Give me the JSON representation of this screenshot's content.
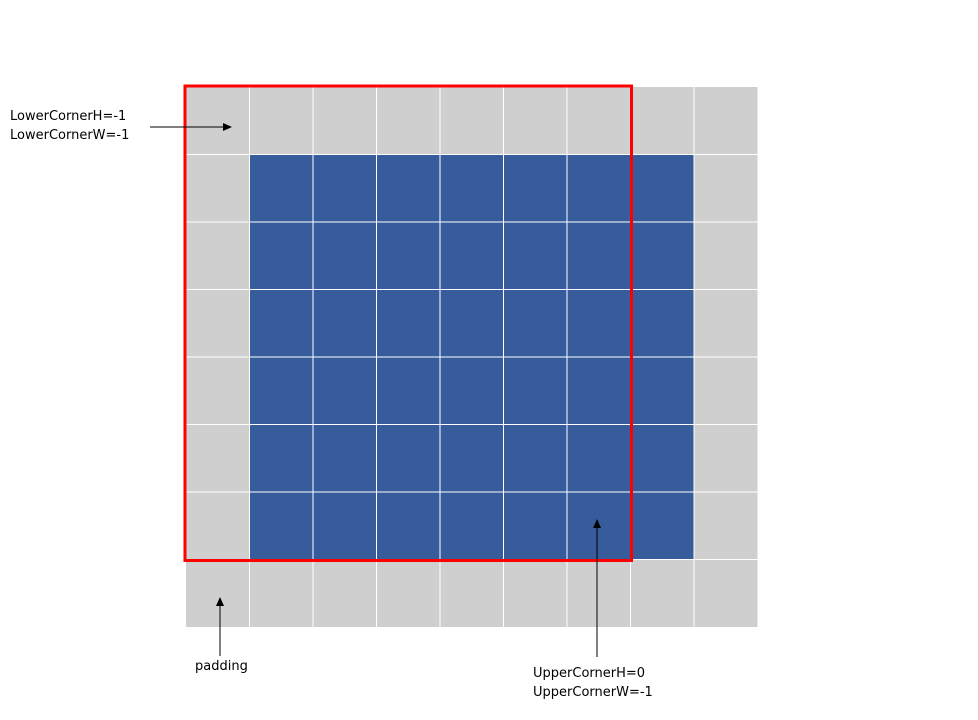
{
  "grid": {
    "rows": 8,
    "cols": 9,
    "active_rows": [
      1,
      6
    ],
    "active_cols": [
      1,
      7
    ],
    "window_rows": [
      0,
      6
    ],
    "window_cols": [
      0,
      6
    ]
  },
  "colors": {
    "padding_cell": "#d0cfd0",
    "active_cell": "#365c9c",
    "gridline": "#ffffff",
    "window_border": "#ff0000",
    "arrow": "#000000"
  },
  "labels": {
    "lower_corner_h": "LowerCornerH=-1",
    "lower_corner_w": "LowerCornerW=-1",
    "padding": "padding",
    "upper_corner_h": "UpperCornerH=0",
    "upper_corner_w": "UpperCornerW=-1"
  }
}
